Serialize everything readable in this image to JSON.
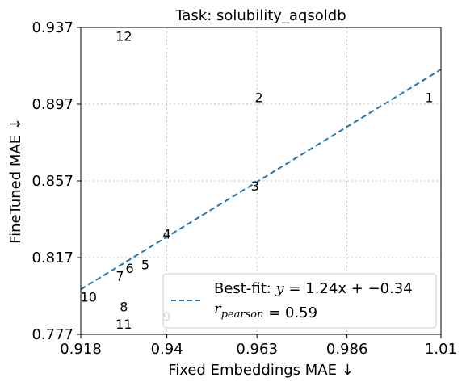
{
  "chart_data": {
    "type": "scatter",
    "title": "Task: solubility_aqsoldb",
    "xlabel": "Fixed Embeddings MAE ↓",
    "ylabel": "FineTuned MAE ↓",
    "xlim": [
      0.918,
      1.01
    ],
    "ylim": [
      0.777,
      0.937
    ],
    "xticks": [
      0.918,
      0.94,
      0.963,
      0.986,
      1.01
    ],
    "xtick_labels": [
      "0.918",
      "0.94",
      "0.963",
      "0.986",
      "1.01"
    ],
    "yticks": [
      0.777,
      0.817,
      0.857,
      0.897,
      0.937
    ],
    "ytick_labels": [
      "0.777",
      "0.817",
      "0.857",
      "0.897",
      "0.937"
    ],
    "grid": true,
    "marker": "text-label",
    "points": [
      {
        "label": "1",
        "x": 1.007,
        "y": 0.9005,
        "color": "#000000"
      },
      {
        "label": "2",
        "x": 0.9635,
        "y": 0.9005,
        "color": "#000000"
      },
      {
        "label": "3",
        "x": 0.9625,
        "y": 0.8545,
        "color": "#000000"
      },
      {
        "label": "4",
        "x": 0.94,
        "y": 0.8295,
        "color": "#000000"
      },
      {
        "label": "5",
        "x": 0.9345,
        "y": 0.8135,
        "color": "#000000"
      },
      {
        "label": "6",
        "x": 0.9305,
        "y": 0.8115,
        "color": "#000000"
      },
      {
        "label": "7",
        "x": 0.928,
        "y": 0.8075,
        "color": "#000000"
      },
      {
        "label": "8",
        "x": 0.929,
        "y": 0.7915,
        "color": "#000000"
      },
      {
        "label": "9",
        "x": 0.94,
        "y": 0.7865,
        "color": "#aaaaaa"
      },
      {
        "label": "10",
        "x": 0.92,
        "y": 0.7965,
        "color": "#000000"
      },
      {
        "label": "11",
        "x": 0.929,
        "y": 0.7825,
        "color": "#000000"
      },
      {
        "label": "12",
        "x": 0.929,
        "y": 0.9325,
        "color": "#000000"
      }
    ],
    "fit_line": {
      "x": [
        0.918,
        1.01
      ],
      "y": [
        0.8004,
        0.9151
      ],
      "color": "#1f77b4",
      "style": "dashed"
    },
    "legend": {
      "placement": "lower-right",
      "line1": "Best-fit: y = 1.24x + −0.34",
      "line2": "r_pearson = 0.59"
    }
  }
}
